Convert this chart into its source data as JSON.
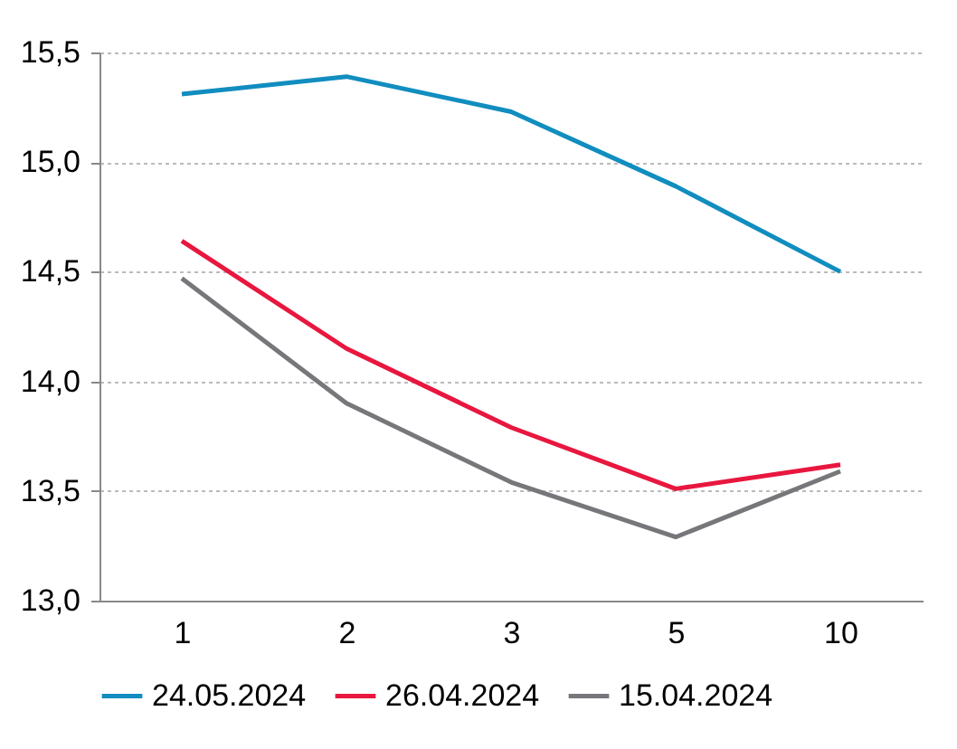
{
  "chart_data": {
    "type": "line",
    "categories": [
      "1",
      "2",
      "3",
      "5",
      "10"
    ],
    "series": [
      {
        "name": "24.05.2024",
        "color": "#118dbf",
        "values": [
          15.31,
          15.39,
          15.23,
          14.89,
          14.5
        ]
      },
      {
        "name": "26.04.2024",
        "color": "#e8173f",
        "values": [
          14.64,
          14.15,
          13.79,
          13.51,
          13.62
        ]
      },
      {
        "name": "15.04.2024",
        "color": "#77767a",
        "values": [
          14.47,
          13.9,
          13.54,
          13.29,
          13.59
        ]
      }
    ],
    "ylim": [
      13,
      15.5
    ],
    "yticks": [
      {
        "value": 13,
        "label": "13,0"
      },
      {
        "value": 13.5,
        "label": "13,5"
      },
      {
        "value": 14,
        "label": "14,0"
      },
      {
        "value": 14.5,
        "label": "14,5"
      },
      {
        "value": 15,
        "label": "15,0"
      },
      {
        "value": 15.5,
        "label": "15,5"
      }
    ],
    "grid": "y",
    "legend": "bottom",
    "marker": "none",
    "line_style": "solid"
  }
}
